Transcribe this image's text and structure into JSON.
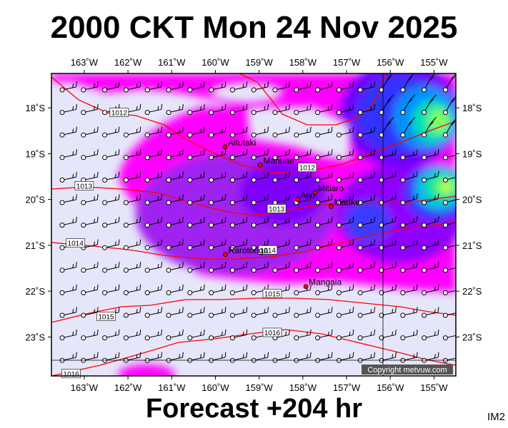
{
  "title": "2000 CKT Mon 24 Nov 2025",
  "footer": "Forecast +204 hr",
  "product_code": "IM2",
  "copyright": "Copyright metvuw.com",
  "map": {
    "lon_range": [
      163.75,
      154.5
    ],
    "lat_range": [
      17.25,
      23.85
    ],
    "lon_ticks": [
      163,
      162,
      161,
      160,
      159,
      158,
      157,
      156,
      155
    ],
    "lat_ticks": [
      18,
      19,
      20,
      21,
      22,
      23
    ],
    "lon_tick_labels": [
      "163˚W",
      "162˚W",
      "161˚W",
      "160˚W",
      "159˚W",
      "158˚W",
      "157˚W",
      "156˚W",
      "155˚W"
    ],
    "lat_tick_labels": [
      "18˚S",
      "19˚S",
      "20˚S",
      "21˚S",
      "22˚S",
      "23˚S"
    ],
    "isobar_color": "#ff0000",
    "isobar_labels": [
      {
        "text": "1012",
        "lon": 162.2,
        "lat": 18.1
      },
      {
        "text": "1012",
        "lon": 157.9,
        "lat": 19.3
      },
      {
        "text": "1013",
        "lon": 163.0,
        "lat": 19.7
      },
      {
        "text": "1013",
        "lon": 158.6,
        "lat": 20.2
      },
      {
        "text": "1014",
        "lon": 163.2,
        "lat": 20.95
      },
      {
        "text": "1014",
        "lon": 158.8,
        "lat": 21.1
      },
      {
        "text": "1015",
        "lon": 162.5,
        "lat": 22.55
      },
      {
        "text": "1015",
        "lon": 158.7,
        "lat": 22.05
      },
      {
        "text": "1016",
        "lon": 158.7,
        "lat": 22.9
      },
      {
        "text": "1016",
        "lon": 163.3,
        "lat": 23.8
      }
    ],
    "islands": [
      {
        "name": "Aitutaki",
        "lon": 159.78,
        "lat": 18.85
      },
      {
        "name": "Manuae",
        "lon": 158.97,
        "lat": 19.25
      },
      {
        "name": "Mitiaro",
        "lon": 157.72,
        "lat": 19.85
      },
      {
        "name": "Atiu",
        "lon": 158.12,
        "lat": 20.0
      },
      {
        "name": "Mauke",
        "lon": 157.35,
        "lat": 20.15
      },
      {
        "name": "Rarotonga",
        "lon": 159.77,
        "lat": 21.2
      },
      {
        "name": "Mangaia",
        "lon": 157.93,
        "lat": 21.9
      }
    ]
  }
}
